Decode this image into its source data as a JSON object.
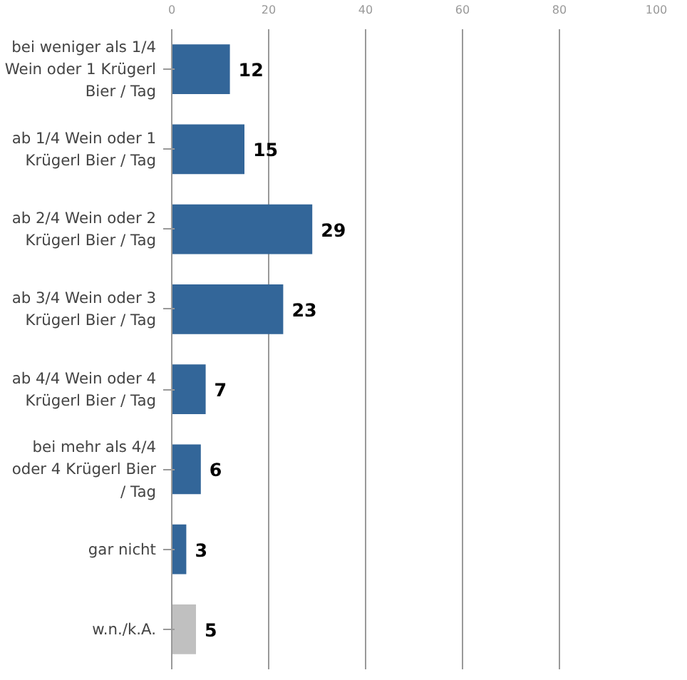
{
  "chart_data": {
    "type": "bar",
    "orientation": "horizontal",
    "categories": [
      "bei weniger als 1/4 Wein oder 1 Krügerl Bier / Tag",
      "ab 1/4 Wein oder 1 Krügerl Bier / Tag",
      "ab 2/4 Wein oder 2 Krügerl Bier / Tag",
      "ab 3/4 Wein oder 3 Krügerl Bier / Tag",
      "ab 4/4 Wein oder 4 Krügerl Bier / Tag",
      "bei mehr als 4/4 oder 4 Krügerl Bier / Tag",
      "gar nicht",
      "w.n./k.A."
    ],
    "values": [
      12,
      15,
      29,
      23,
      7,
      6,
      3,
      5
    ],
    "colors": [
      "#336699",
      "#336699",
      "#336699",
      "#336699",
      "#336699",
      "#336699",
      "#336699",
      "#c0c0c0"
    ],
    "xlim": [
      0,
      100
    ],
    "xticks": [
      0,
      20,
      40,
      60,
      80,
      100
    ],
    "grid": "x",
    "data_labels": true
  }
}
